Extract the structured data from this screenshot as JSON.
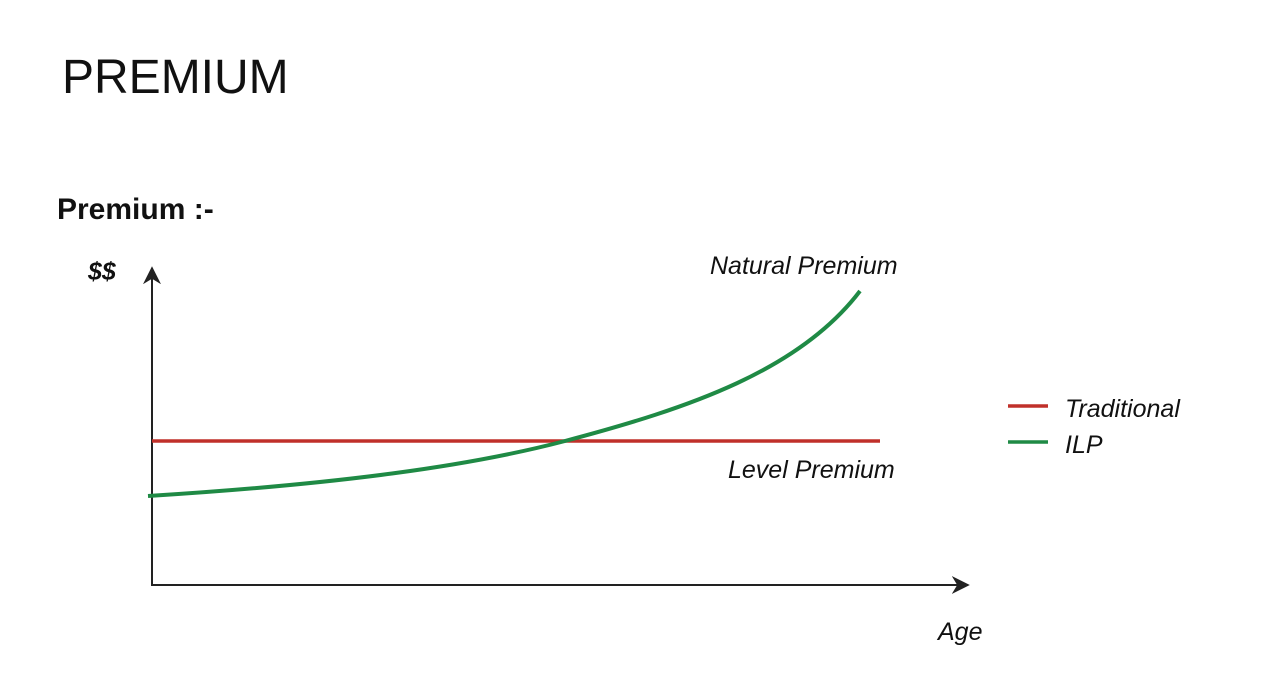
{
  "slide": {
    "title": "PREMIUM",
    "subtitle": "Premium :-"
  },
  "diagram": {
    "y_axis_label": "$$",
    "x_axis_label": "Age",
    "curve_labels": [
      "Natural Premium",
      "Level Premium"
    ],
    "legend": [
      {
        "name": "Traditional",
        "color": "#c0302a"
      },
      {
        "name": "ILP",
        "color": "#1f8a45"
      }
    ]
  }
}
